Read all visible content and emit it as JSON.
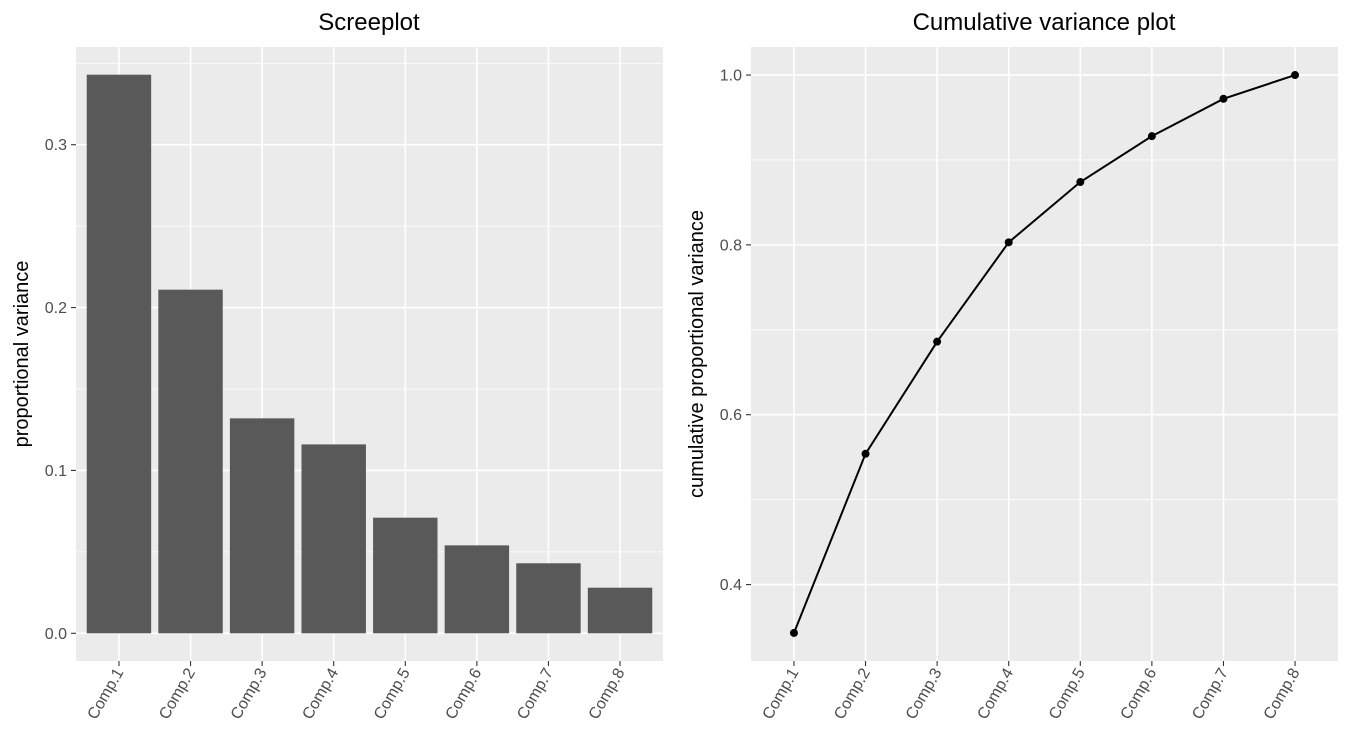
{
  "chart_data": [
    {
      "type": "bar",
      "title": "Screeplot",
      "xlabel": "",
      "ylabel": "proportional variance",
      "categories": [
        "Comp.1",
        "Comp.2",
        "Comp.3",
        "Comp.4",
        "Comp.5",
        "Comp.6",
        "Comp.7",
        "Comp.8"
      ],
      "values": [
        0.343,
        0.211,
        0.132,
        0.116,
        0.071,
        0.054,
        0.043,
        0.028
      ],
      "yticks": [
        "0.0",
        "0.1",
        "0.2",
        "0.3"
      ],
      "ylim": [
        -0.017,
        0.36
      ],
      "grid": true,
      "colors": {
        "bar": "#595959",
        "panel": "#EBEBEB"
      }
    },
    {
      "type": "line",
      "title": "Cumulative variance plot",
      "xlabel": "",
      "ylabel": "cumulative proportional variance",
      "categories": [
        "Comp.1",
        "Comp.2",
        "Comp.3",
        "Comp.4",
        "Comp.5",
        "Comp.6",
        "Comp.7",
        "Comp.8"
      ],
      "values": [
        0.343,
        0.554,
        0.686,
        0.803,
        0.874,
        0.928,
        0.972,
        1.0
      ],
      "yticks": [
        "0.4",
        "0.6",
        "0.8",
        "1.0"
      ],
      "ylim": [
        0.31,
        1.033
      ],
      "grid": true,
      "colors": {
        "line": "#000000",
        "panel": "#EBEBEB"
      }
    }
  ]
}
